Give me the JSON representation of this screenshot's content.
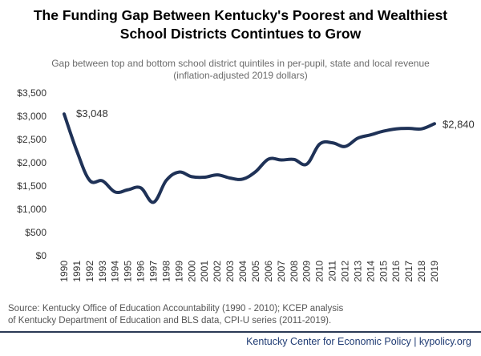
{
  "colors": {
    "line": "#1f3257",
    "text": "#333333",
    "source_text": "#555555",
    "footer_text": "#1f3b73"
  },
  "chart_data": {
    "type": "line",
    "title_lines": [
      "The Funding Gap Between Kentucky's Poorest and Wealthiest",
      "School Districts Contintues to Grow"
    ],
    "subtitle_lines": [
      "Gap between top and bottom school district quintiles in per-pupil, state and local revenue",
      "(inflation-adjusted 2019 dollars)"
    ],
    "x": [
      1990,
      1991,
      1992,
      1993,
      1994,
      1995,
      1996,
      1997,
      1998,
      1999,
      2000,
      2001,
      2002,
      2003,
      2004,
      2005,
      2006,
      2007,
      2008,
      2009,
      2010,
      2011,
      2012,
      2013,
      2014,
      2015,
      2016,
      2017,
      2018,
      2019
    ],
    "series": [
      {
        "values": [
          3048,
          2250,
          1620,
          1610,
          1370,
          1420,
          1460,
          1150,
          1620,
          1800,
          1700,
          1690,
          1740,
          1670,
          1650,
          1810,
          2080,
          2060,
          2070,
          1970,
          2400,
          2430,
          2350,
          2530,
          2600,
          2680,
          2730,
          2740,
          2730,
          2840
        ]
      }
    ],
    "ylim": [
      0,
      3500
    ],
    "y_ticks": [
      0,
      500,
      1000,
      1500,
      2000,
      2500,
      3000,
      3500
    ],
    "y_tick_labels": [
      "$0",
      "$500",
      "$1,000",
      "$1,500",
      "$2,000",
      "$2,500",
      "$3,000",
      "$3,500"
    ],
    "annotations": [
      {
        "text": "$3,048",
        "year": 1990
      },
      {
        "text": "$2,840",
        "year": 2019
      }
    ],
    "grid": false,
    "legend": "none"
  },
  "source_lines": [
    "Source: Kentucky Office of Education Accountability (1990 - 2010); KCEP analysis",
    "of Kentucky Department of Education and BLS data, CPI-U series (2011-2019)."
  ],
  "footer": "Kentucky Center for Economic Policy | kypolicy.org"
}
